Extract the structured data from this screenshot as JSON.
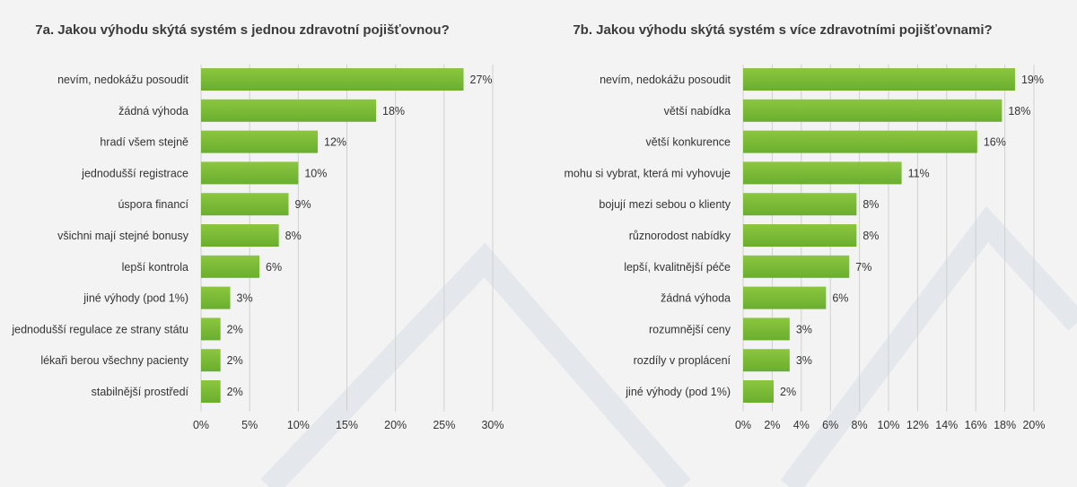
{
  "colors": {
    "bar_start": "#8cc63f",
    "bar_end": "#6aae2f",
    "background": "#f3f3f3",
    "gridline": "#d0d0d0"
  },
  "chart_data": [
    {
      "type": "bar",
      "orientation": "horizontal",
      "title": "7a. Jakou výhodu skýtá systém s jednou zdravotní pojišťovnou?",
      "categories": [
        "nevím, nedokážu posoudit",
        "žádná výhoda",
        "hradí všem stejně",
        "jednodušší registrace",
        "úspora financí",
        "všichni mají stejné bonusy",
        "lepší kontrola",
        "jiné výhody (pod 1%)",
        "jednodušší regulace ze strany státu",
        "lékaři berou všechny pacienty",
        "stabilnější prostředí"
      ],
      "values": [
        27,
        18,
        12,
        10,
        9,
        8,
        6,
        3,
        2,
        2,
        2
      ],
      "data_labels": [
        "27%",
        "18%",
        "12%",
        "10%",
        "9%",
        "8%",
        "6%",
        "3%",
        "2%",
        "2%",
        "2%"
      ],
      "xlim": [
        0,
        30
      ],
      "ticks": [
        0,
        5,
        10,
        15,
        20,
        25,
        30
      ],
      "tick_labels": [
        "0%",
        "5%",
        "10%",
        "15%",
        "20%",
        "25%",
        "30%"
      ],
      "grid": true
    },
    {
      "type": "bar",
      "orientation": "horizontal",
      "title": "7b. Jakou výhodu skýtá systém s více zdravotními pojišťovnami?",
      "categories": [
        "nevím, nedokážu posoudit",
        "větší nabídka",
        "větší konkurence",
        "mohu si vybrat, která mi vyhovuje",
        "bojují mezi sebou o klienty",
        "různorodost nabídky",
        "lepší, kvalitnější péče",
        "žádná výhoda",
        "rozumnější ceny",
        "rozdíly v proplácení",
        "jiné výhody (pod 1%)"
      ],
      "values": [
        18.7,
        17.8,
        16.1,
        10.9,
        7.8,
        7.8,
        7.3,
        5.7,
        3.2,
        3.2,
        2.1
      ],
      "data_labels": [
        "19%",
        "18%",
        "16%",
        "11%",
        "8%",
        "8%",
        "7%",
        "6%",
        "3%",
        "3%",
        "2%"
      ],
      "xlim": [
        0,
        20
      ],
      "ticks": [
        0,
        2,
        4,
        6,
        8,
        10,
        12,
        14,
        16,
        18,
        20
      ],
      "tick_labels": [
        "0%",
        "2%",
        "4%",
        "6%",
        "8%",
        "10%",
        "12%",
        "14%",
        "16%",
        "18%",
        "20%"
      ],
      "grid": true
    }
  ]
}
